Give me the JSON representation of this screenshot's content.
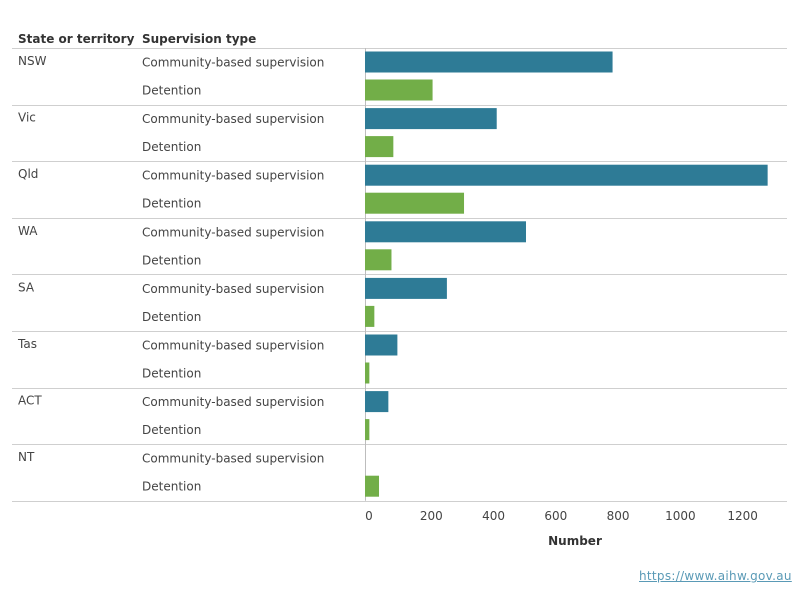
{
  "header": {
    "state_column": "State or territory",
    "type_column": "Supervision type"
  },
  "source_link": "https://www.aihw.gov.au",
  "colors": {
    "community": "#2e7b96",
    "detention": "#72ae48",
    "divider": "#cfcfcf",
    "axis_line": "#bdbdbd"
  },
  "chart_data": {
    "type": "bar",
    "orientation": "horizontal",
    "x_axis_title": "Number",
    "xlim": [
      0,
      1300
    ],
    "x_ticks": [
      0,
      200,
      400,
      600,
      800,
      1000,
      1200
    ],
    "grid": false,
    "groups": [
      {
        "state": "NSW",
        "bars": [
          {
            "type": "Community-based supervision",
            "value": 795
          },
          {
            "type": "Detention",
            "value": 217
          }
        ]
      },
      {
        "state": "Vic",
        "bars": [
          {
            "type": "Community-based supervision",
            "value": 423
          },
          {
            "type": "Detention",
            "value": 91
          }
        ]
      },
      {
        "state": "Qld",
        "bars": [
          {
            "type": "Community-based supervision",
            "value": 1293
          },
          {
            "type": "Detention",
            "value": 318
          }
        ]
      },
      {
        "state": "WA",
        "bars": [
          {
            "type": "Community-based supervision",
            "value": 517
          },
          {
            "type": "Detention",
            "value": 85
          }
        ]
      },
      {
        "state": "SA",
        "bars": [
          {
            "type": "Community-based supervision",
            "value": 263
          },
          {
            "type": "Detention",
            "value": 30
          }
        ]
      },
      {
        "state": "Tas",
        "bars": [
          {
            "type": "Community-based supervision",
            "value": 104
          },
          {
            "type": "Detention",
            "value": 14
          }
        ]
      },
      {
        "state": "ACT",
        "bars": [
          {
            "type": "Community-based supervision",
            "value": 75
          },
          {
            "type": "Detention",
            "value": 14
          }
        ]
      },
      {
        "state": "NT",
        "bars": [
          {
            "type": "Community-based supervision",
            "value": 0
          },
          {
            "type": "Detention",
            "value": 45
          }
        ]
      }
    ]
  }
}
